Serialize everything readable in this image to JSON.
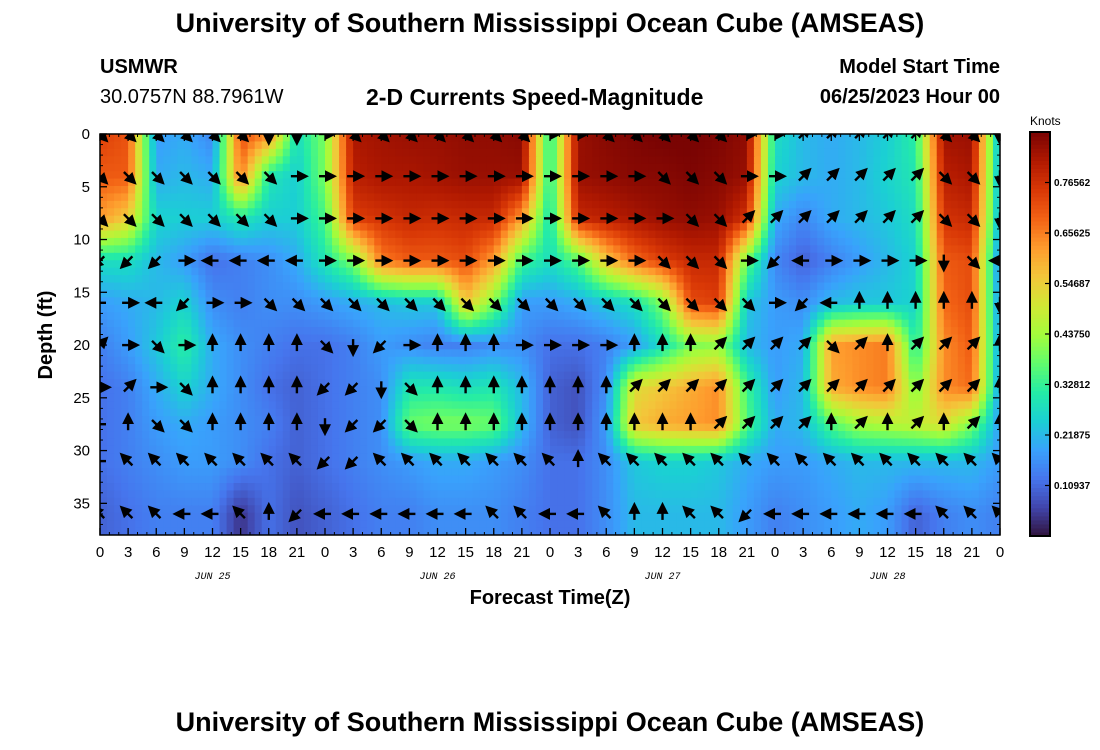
{
  "header": {
    "title": "University of Southern Mississippi Ocean Cube (AMSEAS)",
    "station": "USMWR",
    "coordinates": "30.0757N  88.7961W",
    "subtitle": "2-D Currents Speed-Magnitude",
    "model_start_label": "Model Start Time",
    "model_start_value": "06/25/2023 Hour 00"
  },
  "footer": {
    "title": "University of Southern Mississippi Ocean Cube (AMSEAS)"
  },
  "chart_data": {
    "type": "heatmap",
    "title": "2-D Currents Speed-Magnitude",
    "xlabel": "Forecast Time(Z)",
    "ylabel": "Depth (ft)",
    "x_ticks": [
      "0",
      "3",
      "6",
      "9",
      "12",
      "15",
      "18",
      "21",
      "0",
      "3",
      "6",
      "9",
      "12",
      "15",
      "18",
      "21",
      "0",
      "3",
      "6",
      "9",
      "12",
      "15",
      "18",
      "21",
      "0",
      "3",
      "6",
      "9",
      "12",
      "15",
      "18",
      "21",
      "0"
    ],
    "x_range_hours": [
      0,
      96
    ],
    "day_labels": [
      {
        "label": "JUN 25",
        "hour": 12
      },
      {
        "label": "JUN 26",
        "hour": 36
      },
      {
        "label": "JUN 27",
        "hour": 60
      },
      {
        "label": "JUN 28",
        "hour": 84
      }
    ],
    "y_ticks": [
      0,
      5,
      10,
      15,
      20,
      25,
      30,
      35
    ],
    "y_range_ft": [
      0,
      38
    ],
    "colorbar": {
      "unit": "Knots",
      "tick_labels": [
        "0.76562",
        "0.65625",
        "0.54687",
        "0.43750",
        "0.32812",
        "0.21875",
        "0.10937"
      ],
      "range": [
        0,
        0.875
      ],
      "colors": [
        "#30123b",
        "#4145ab",
        "#4675ed",
        "#39a2fc",
        "#1bcfd4",
        "#24eca6",
        "#61fc6c",
        "#a4fc3b",
        "#d1e834",
        "#f3c63a",
        "#fe9b2d",
        "#f36315",
        "#d93806",
        "#b11901",
        "#7a0403"
      ]
    },
    "depth_levels_ft": [
      0,
      4,
      8,
      12,
      16,
      20,
      24,
      27.5,
      31,
      36
    ],
    "time_hours": [
      0,
      3,
      6,
      9,
      12,
      15,
      18,
      21,
      24,
      27,
      30,
      33,
      36,
      39,
      42,
      45,
      48,
      51,
      54,
      57,
      60,
      63,
      66,
      69,
      72,
      75,
      78,
      81,
      84,
      87,
      90,
      93,
      96
    ],
    "speed_knots": [
      [
        0.74,
        0.71,
        0.18,
        0.2,
        0.15,
        0.72,
        0.65,
        0.28,
        0.4,
        0.82,
        0.83,
        0.84,
        0.84,
        0.85,
        0.85,
        0.86,
        0.3,
        0.84,
        0.86,
        0.87,
        0.88,
        0.88,
        0.87,
        0.85,
        0.28,
        0.22,
        0.2,
        0.22,
        0.25,
        0.32,
        0.83,
        0.84,
        0.2
      ],
      [
        0.7,
        0.7,
        0.2,
        0.22,
        0.2,
        0.66,
        0.3,
        0.25,
        0.4,
        0.8,
        0.82,
        0.82,
        0.83,
        0.84,
        0.84,
        0.84,
        0.3,
        0.84,
        0.85,
        0.86,
        0.86,
        0.87,
        0.86,
        0.84,
        0.26,
        0.22,
        0.2,
        0.22,
        0.26,
        0.3,
        0.8,
        0.82,
        0.2
      ],
      [
        0.62,
        0.55,
        0.26,
        0.25,
        0.25,
        0.3,
        0.25,
        0.25,
        0.35,
        0.74,
        0.76,
        0.78,
        0.77,
        0.78,
        0.78,
        0.62,
        0.28,
        0.78,
        0.8,
        0.82,
        0.84,
        0.85,
        0.84,
        0.76,
        0.2,
        0.15,
        0.2,
        0.22,
        0.24,
        0.28,
        0.76,
        0.78,
        0.2
      ],
      [
        0.28,
        0.28,
        0.22,
        0.18,
        0.12,
        0.14,
        0.16,
        0.2,
        0.3,
        0.4,
        0.66,
        0.7,
        0.7,
        0.72,
        0.62,
        0.34,
        0.28,
        0.36,
        0.56,
        0.68,
        0.74,
        0.78,
        0.78,
        0.38,
        0.15,
        0.1,
        0.14,
        0.18,
        0.22,
        0.26,
        0.7,
        0.72,
        0.15
      ],
      [
        0.18,
        0.2,
        0.22,
        0.26,
        0.16,
        0.14,
        0.16,
        0.16,
        0.18,
        0.2,
        0.22,
        0.24,
        0.24,
        0.56,
        0.4,
        0.18,
        0.18,
        0.2,
        0.24,
        0.28,
        0.4,
        0.72,
        0.74,
        0.24,
        0.18,
        0.16,
        0.22,
        0.24,
        0.24,
        0.26,
        0.68,
        0.72,
        0.16
      ],
      [
        0.14,
        0.18,
        0.24,
        0.32,
        0.2,
        0.16,
        0.14,
        0.12,
        0.12,
        0.14,
        0.18,
        0.16,
        0.14,
        0.14,
        0.16,
        0.16,
        0.12,
        0.12,
        0.14,
        0.18,
        0.28,
        0.4,
        0.42,
        0.22,
        0.18,
        0.2,
        0.62,
        0.64,
        0.66,
        0.3,
        0.64,
        0.7,
        0.18
      ],
      [
        0.12,
        0.14,
        0.2,
        0.26,
        0.2,
        0.16,
        0.12,
        0.1,
        0.12,
        0.14,
        0.16,
        0.3,
        0.3,
        0.28,
        0.3,
        0.22,
        0.1,
        0.08,
        0.16,
        0.52,
        0.56,
        0.6,
        0.64,
        0.34,
        0.18,
        0.22,
        0.6,
        0.64,
        0.66,
        0.4,
        0.64,
        0.68,
        0.18
      ],
      [
        0.12,
        0.14,
        0.18,
        0.2,
        0.18,
        0.16,
        0.14,
        0.1,
        0.12,
        0.14,
        0.16,
        0.38,
        0.4,
        0.4,
        0.38,
        0.22,
        0.1,
        0.08,
        0.18,
        0.56,
        0.6,
        0.62,
        0.64,
        0.36,
        0.2,
        0.22,
        0.36,
        0.44,
        0.46,
        0.48,
        0.52,
        0.4,
        0.18
      ],
      [
        0.12,
        0.14,
        0.16,
        0.18,
        0.18,
        0.16,
        0.12,
        0.1,
        0.12,
        0.14,
        0.16,
        0.18,
        0.2,
        0.2,
        0.18,
        0.16,
        0.12,
        0.12,
        0.16,
        0.24,
        0.26,
        0.26,
        0.24,
        0.2,
        0.18,
        0.18,
        0.2,
        0.22,
        0.22,
        0.22,
        0.22,
        0.22,
        0.18
      ],
      [
        0.1,
        0.12,
        0.14,
        0.14,
        0.14,
        0.04,
        0.12,
        0.08,
        0.1,
        0.12,
        0.14,
        0.14,
        0.16,
        0.16,
        0.16,
        0.14,
        0.12,
        0.12,
        0.16,
        0.22,
        0.22,
        0.22,
        0.22,
        0.18,
        0.14,
        0.16,
        0.18,
        0.2,
        0.18,
        0.1,
        0.14,
        0.16,
        0.14
      ]
    ],
    "direction_deg": [
      [
        135,
        135,
        135,
        135,
        135,
        135,
        180,
        180,
        90,
        135,
        135,
        135,
        135,
        135,
        135,
        135,
        90,
        90,
        135,
        135,
        135,
        135,
        135,
        90,
        90,
        45,
        45,
        45,
        45,
        45,
        135,
        135,
        180
      ],
      [
        135,
        135,
        135,
        135,
        135,
        135,
        135,
        90,
        90,
        90,
        90,
        90,
        90,
        90,
        90,
        90,
        90,
        90,
        90,
        90,
        135,
        135,
        135,
        90,
        90,
        45,
        45,
        45,
        45,
        45,
        135,
        135,
        180
      ],
      [
        135,
        135,
        135,
        135,
        135,
        135,
        135,
        90,
        90,
        90,
        90,
        90,
        90,
        90,
        90,
        90,
        90,
        90,
        90,
        90,
        90,
        135,
        135,
        45,
        45,
        45,
        45,
        45,
        45,
        45,
        135,
        135,
        180
      ],
      [
        225,
        225,
        225,
        90,
        270,
        270,
        270,
        270,
        90,
        90,
        90,
        90,
        90,
        90,
        90,
        90,
        90,
        90,
        90,
        90,
        135,
        135,
        135,
        90,
        225,
        270,
        90,
        90,
        90,
        90,
        180,
        135,
        270
      ],
      [
        270,
        90,
        270,
        225,
        90,
        90,
        135,
        135,
        135,
        135,
        135,
        135,
        135,
        135,
        135,
        135,
        135,
        135,
        135,
        135,
        135,
        135,
        135,
        135,
        90,
        225,
        270,
        0,
        0,
        0,
        0,
        0,
        180
      ],
      [
        45,
        90,
        135,
        90,
        0,
        0,
        0,
        0,
        135,
        180,
        225,
        90,
        0,
        0,
        0,
        90,
        90,
        90,
        90,
        0,
        0,
        0,
        45,
        45,
        45,
        45,
        135,
        45,
        0,
        45,
        45,
        45,
        0
      ],
      [
        90,
        45,
        90,
        135,
        0,
        0,
        0,
        0,
        225,
        225,
        180,
        135,
        0,
        0,
        0,
        0,
        0,
        0,
        0,
        45,
        45,
        45,
        45,
        45,
        45,
        45,
        45,
        45,
        45,
        45,
        45,
        45,
        0
      ],
      [
        270,
        0,
        135,
        135,
        0,
        0,
        0,
        0,
        180,
        225,
        225,
        135,
        0,
        0,
        0,
        0,
        0,
        0,
        0,
        0,
        0,
        0,
        45,
        45,
        45,
        45,
        0,
        45,
        0,
        45,
        0,
        45,
        0
      ],
      [
        270,
        315,
        315,
        315,
        315,
        315,
        315,
        315,
        225,
        225,
        315,
        315,
        315,
        315,
        315,
        315,
        315,
        0,
        315,
        315,
        315,
        315,
        315,
        315,
        315,
        315,
        315,
        315,
        315,
        315,
        315,
        315,
        315
      ],
      [
        315,
        315,
        315,
        270,
        270,
        315,
        0,
        225,
        270,
        270,
        270,
        270,
        270,
        270,
        315,
        315,
        270,
        270,
        315,
        0,
        0,
        315,
        315,
        225,
        270,
        270,
        270,
        270,
        270,
        270,
        315,
        315,
        315
      ]
    ]
  }
}
